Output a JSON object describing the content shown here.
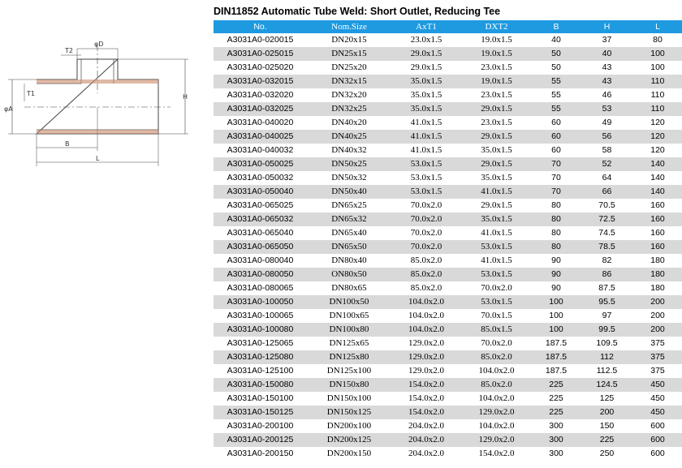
{
  "drawing": {
    "labels": [
      "φD",
      "T2",
      "T1",
      "φA",
      "B",
      "H",
      "L"
    ]
  },
  "table": {
    "title": "DIN11852 Automatic Tube Weld: Short Outlet, Reducing Tee",
    "header": [
      "No.",
      "Nom.Size",
      "AxT1",
      "DXT2",
      "B",
      "H",
      "L"
    ],
    "rows": [
      [
        "A3031A0-020015",
        "DN20x15",
        "23.0x1.5",
        "19.0x1.5",
        "40",
        "37",
        "80"
      ],
      [
        "A3031A0-025015",
        "DN25x15",
        "29.0x1.5",
        "19.0x1.5",
        "50",
        "40",
        "100"
      ],
      [
        "A3031A0-025020",
        "DN25x20",
        "29.0x1.5",
        "23.0x1.5",
        "50",
        "43",
        "100"
      ],
      [
        "A3031A0-032015",
        "DN32x15",
        "35.0x1.5",
        "19.0x1.5",
        "55",
        "43",
        "110"
      ],
      [
        "A3031A0-032020",
        "DN32x20",
        "35.0x1.5",
        "23.0x1.5",
        "55",
        "46",
        "110"
      ],
      [
        "A3031A0-032025",
        "DN32x25",
        "35.0x1.5",
        "29.0x1.5",
        "55",
        "53",
        "110"
      ],
      [
        "A3031A0-040020",
        "DN40x20",
        "41.0x1.5",
        "23.0x1.5",
        "60",
        "49",
        "120"
      ],
      [
        "A3031A0-040025",
        "DN40x25",
        "41.0x1.5",
        "29.0x1.5",
        "60",
        "56",
        "120"
      ],
      [
        "A3031A0-040032",
        "DN40x32",
        "41.0x1.5",
        "35.0x1.5",
        "60",
        "58",
        "120"
      ],
      [
        "A3031A0-050025",
        "DN50x25",
        "53.0x1.5",
        "29.0x1.5",
        "70",
        "52",
        "140"
      ],
      [
        "A3031A0-050032",
        "DN50x32",
        "53.0x1.5",
        "35.0x1.5",
        "70",
        "64",
        "140"
      ],
      [
        "A3031A0-050040",
        "DN50x40",
        "53.0x1.5",
        "41.0x1.5",
        "70",
        "66",
        "140"
      ],
      [
        "A3031A0-065025",
        "DN65x25",
        "70.0x2.0",
        "29.0x1.5",
        "80",
        "70.5",
        "160"
      ],
      [
        "A3031A0-065032",
        "DN65x32",
        "70.0x2.0",
        "35.0x1.5",
        "80",
        "72.5",
        "160"
      ],
      [
        "A3031A0-065040",
        "DN65x40",
        "70.0x2.0",
        "41.0x1.5",
        "80",
        "74.5",
        "160"
      ],
      [
        "A3031A0-065050",
        "DN65x50",
        "70.0x2.0",
        "53.0x1.5",
        "80",
        "78.5",
        "160"
      ],
      [
        "A3031A0-080040",
        "DN80x40",
        "85.0x2.0",
        "41.0x1.5",
        "90",
        "82",
        "180"
      ],
      [
        "A3031A0-080050",
        "ON80x50",
        "85.0x2.0",
        "53.0x1.5",
        "90",
        "86",
        "180"
      ],
      [
        "A3031A0-080065",
        "DN80x65",
        "85.0x2.0",
        "70.0x2.0",
        "90",
        "87.5",
        "180"
      ],
      [
        "A3031A0-100050",
        "DN100x50",
        "104.0x2.0",
        "53.0x1.5",
        "100",
        "95.5",
        "200"
      ],
      [
        "A3031A0-100065",
        "DN100x65",
        "104.0x2.0",
        "70.0x1.5",
        "100",
        "97",
        "200"
      ],
      [
        "A3031A0-100080",
        "DN100x80",
        "104.0x2.0",
        "85.0x1.5",
        "100",
        "99.5",
        "200"
      ],
      [
        "A3031A0-125065",
        "DN125x65",
        "129.0x2.0",
        "70.0x2.0",
        "187.5",
        "109.5",
        "375"
      ],
      [
        "A3031A0-125080",
        "DN125x80",
        "129.0x2.0",
        "85.0x2.0",
        "187.5",
        "112",
        "375"
      ],
      [
        "A3031A0-125100",
        "DN125x100",
        "129.0x2.0",
        "104.0x2.0",
        "187.5",
        "112.5",
        "375"
      ],
      [
        "A3031A0-150080",
        "DN150x80",
        "154.0x2.0",
        "85.0x2.0",
        "225",
        "124.5",
        "450"
      ],
      [
        "A3031A0-150100",
        "DN150x100",
        "154.0x2.0",
        "104.0x2.0",
        "225",
        "125",
        "450"
      ],
      [
        "A3031A0-150125",
        "DN150x125",
        "154.0x2.0",
        "129.0x2.0",
        "225",
        "200",
        "450"
      ],
      [
        "A3031A0-200100",
        "DN200x100",
        "204.0x2.0",
        "104.0x2.0",
        "300",
        "150",
        "600"
      ],
      [
        "A3031A0-200125",
        "DN200x125",
        "204.0x2.0",
        "129.0x2.0",
        "300",
        "225",
        "600"
      ],
      [
        "A3031A0-200150",
        "DN200x150",
        "204.0x2.0",
        "154.0x2.0",
        "300",
        "250",
        "600"
      ]
    ]
  }
}
